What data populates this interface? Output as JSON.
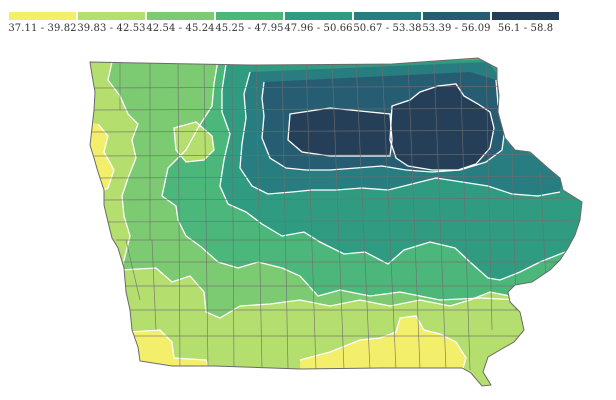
{
  "legend": {
    "bins": [
      {
        "label": "37.11 - 39.82",
        "color": "#f4ef6a"
      },
      {
        "label": "39.83 - 42.53",
        "color": "#b4de6e"
      },
      {
        "label": "42.54 - 45.24",
        "color": "#7ccb72"
      },
      {
        "label": "45.25 - 47.95",
        "color": "#4cb77a"
      },
      {
        "label": "47.96 - 50.66",
        "color": "#2f9c81"
      },
      {
        "label": "50.67 - 53.38",
        "color": "#277d80"
      },
      {
        "label": "53.39 - 56.09",
        "color": "#265d72"
      },
      {
        "label": "56.1 - 58.8",
        "color": "#253f58"
      }
    ]
  },
  "map": {
    "region": "Iowa",
    "unit": "county",
    "colors": {
      "county_border": "#6f6f6f",
      "contour_line": "#ffffff",
      "state_outline": "#6a6a6a"
    }
  }
}
